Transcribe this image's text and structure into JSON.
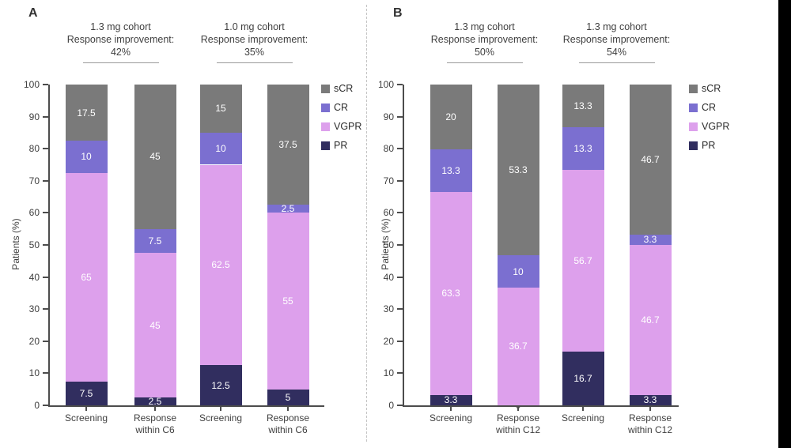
{
  "chart_data": [
    {
      "panel": "A",
      "type": "bar",
      "stacked": true,
      "ylabel": "Patients (%)",
      "ylim": [
        0,
        100
      ],
      "ytick_step": 10,
      "grid": false,
      "legend_position": "right",
      "legend_order": [
        "sCR",
        "CR",
        "VGPR",
        "PR"
      ],
      "categories": [
        "Screening",
        "Response within C6",
        "Screening",
        "Response within C6"
      ],
      "series": [
        {
          "name": "PR",
          "color": "#312e5f",
          "values": [
            7.5,
            2.5,
            12.5,
            5
          ]
        },
        {
          "name": "VGPR",
          "color": "#dda0ec",
          "values": [
            65,
            45,
            62.5,
            55
          ]
        },
        {
          "name": "CR",
          "color": "#7b6fd0",
          "values": [
            10,
            7.5,
            10,
            2.5
          ]
        },
        {
          "name": "sCR",
          "color": "#7a7a7a",
          "values": [
            17.5,
            45,
            15,
            37.5
          ]
        }
      ],
      "group_annotations": [
        {
          "lines": [
            "1.3 mg cohort",
            "Response improvement:",
            "42%"
          ],
          "bars": [
            0,
            1
          ]
        },
        {
          "lines": [
            "1.0 mg cohort",
            "Response improvement:",
            "35%"
          ],
          "bars": [
            2,
            3
          ]
        }
      ]
    },
    {
      "panel": "B",
      "type": "bar",
      "stacked": true,
      "ylabel": "Patients (%)",
      "ylim": [
        0,
        100
      ],
      "ytick_step": 10,
      "grid": false,
      "legend_position": "right",
      "legend_order": [
        "sCR",
        "CR",
        "VGPR",
        "PR"
      ],
      "categories": [
        "Screening",
        "Response within C12",
        "Screening",
        "Response within C12"
      ],
      "series": [
        {
          "name": "PR",
          "color": "#312e5f",
          "values": [
            3.3,
            0,
            16.7,
            3.3
          ]
        },
        {
          "name": "VGPR",
          "color": "#dda0ec",
          "values": [
            63.3,
            36.7,
            56.7,
            46.7
          ]
        },
        {
          "name": "CR",
          "color": "#7b6fd0",
          "values": [
            13.3,
            10,
            13.3,
            3.3
          ]
        },
        {
          "name": "sCR",
          "color": "#7a7a7a",
          "values": [
            20,
            53.3,
            13.3,
            46.7
          ]
        }
      ],
      "group_annotations": [
        {
          "lines": [
            "1.3 mg cohort",
            "Response improvement:",
            "50%"
          ],
          "bars": [
            0,
            1
          ]
        },
        {
          "lines": [
            "1.3 mg cohort",
            "Response improvement:",
            "54%"
          ],
          "bars": [
            2,
            3
          ]
        }
      ]
    }
  ]
}
